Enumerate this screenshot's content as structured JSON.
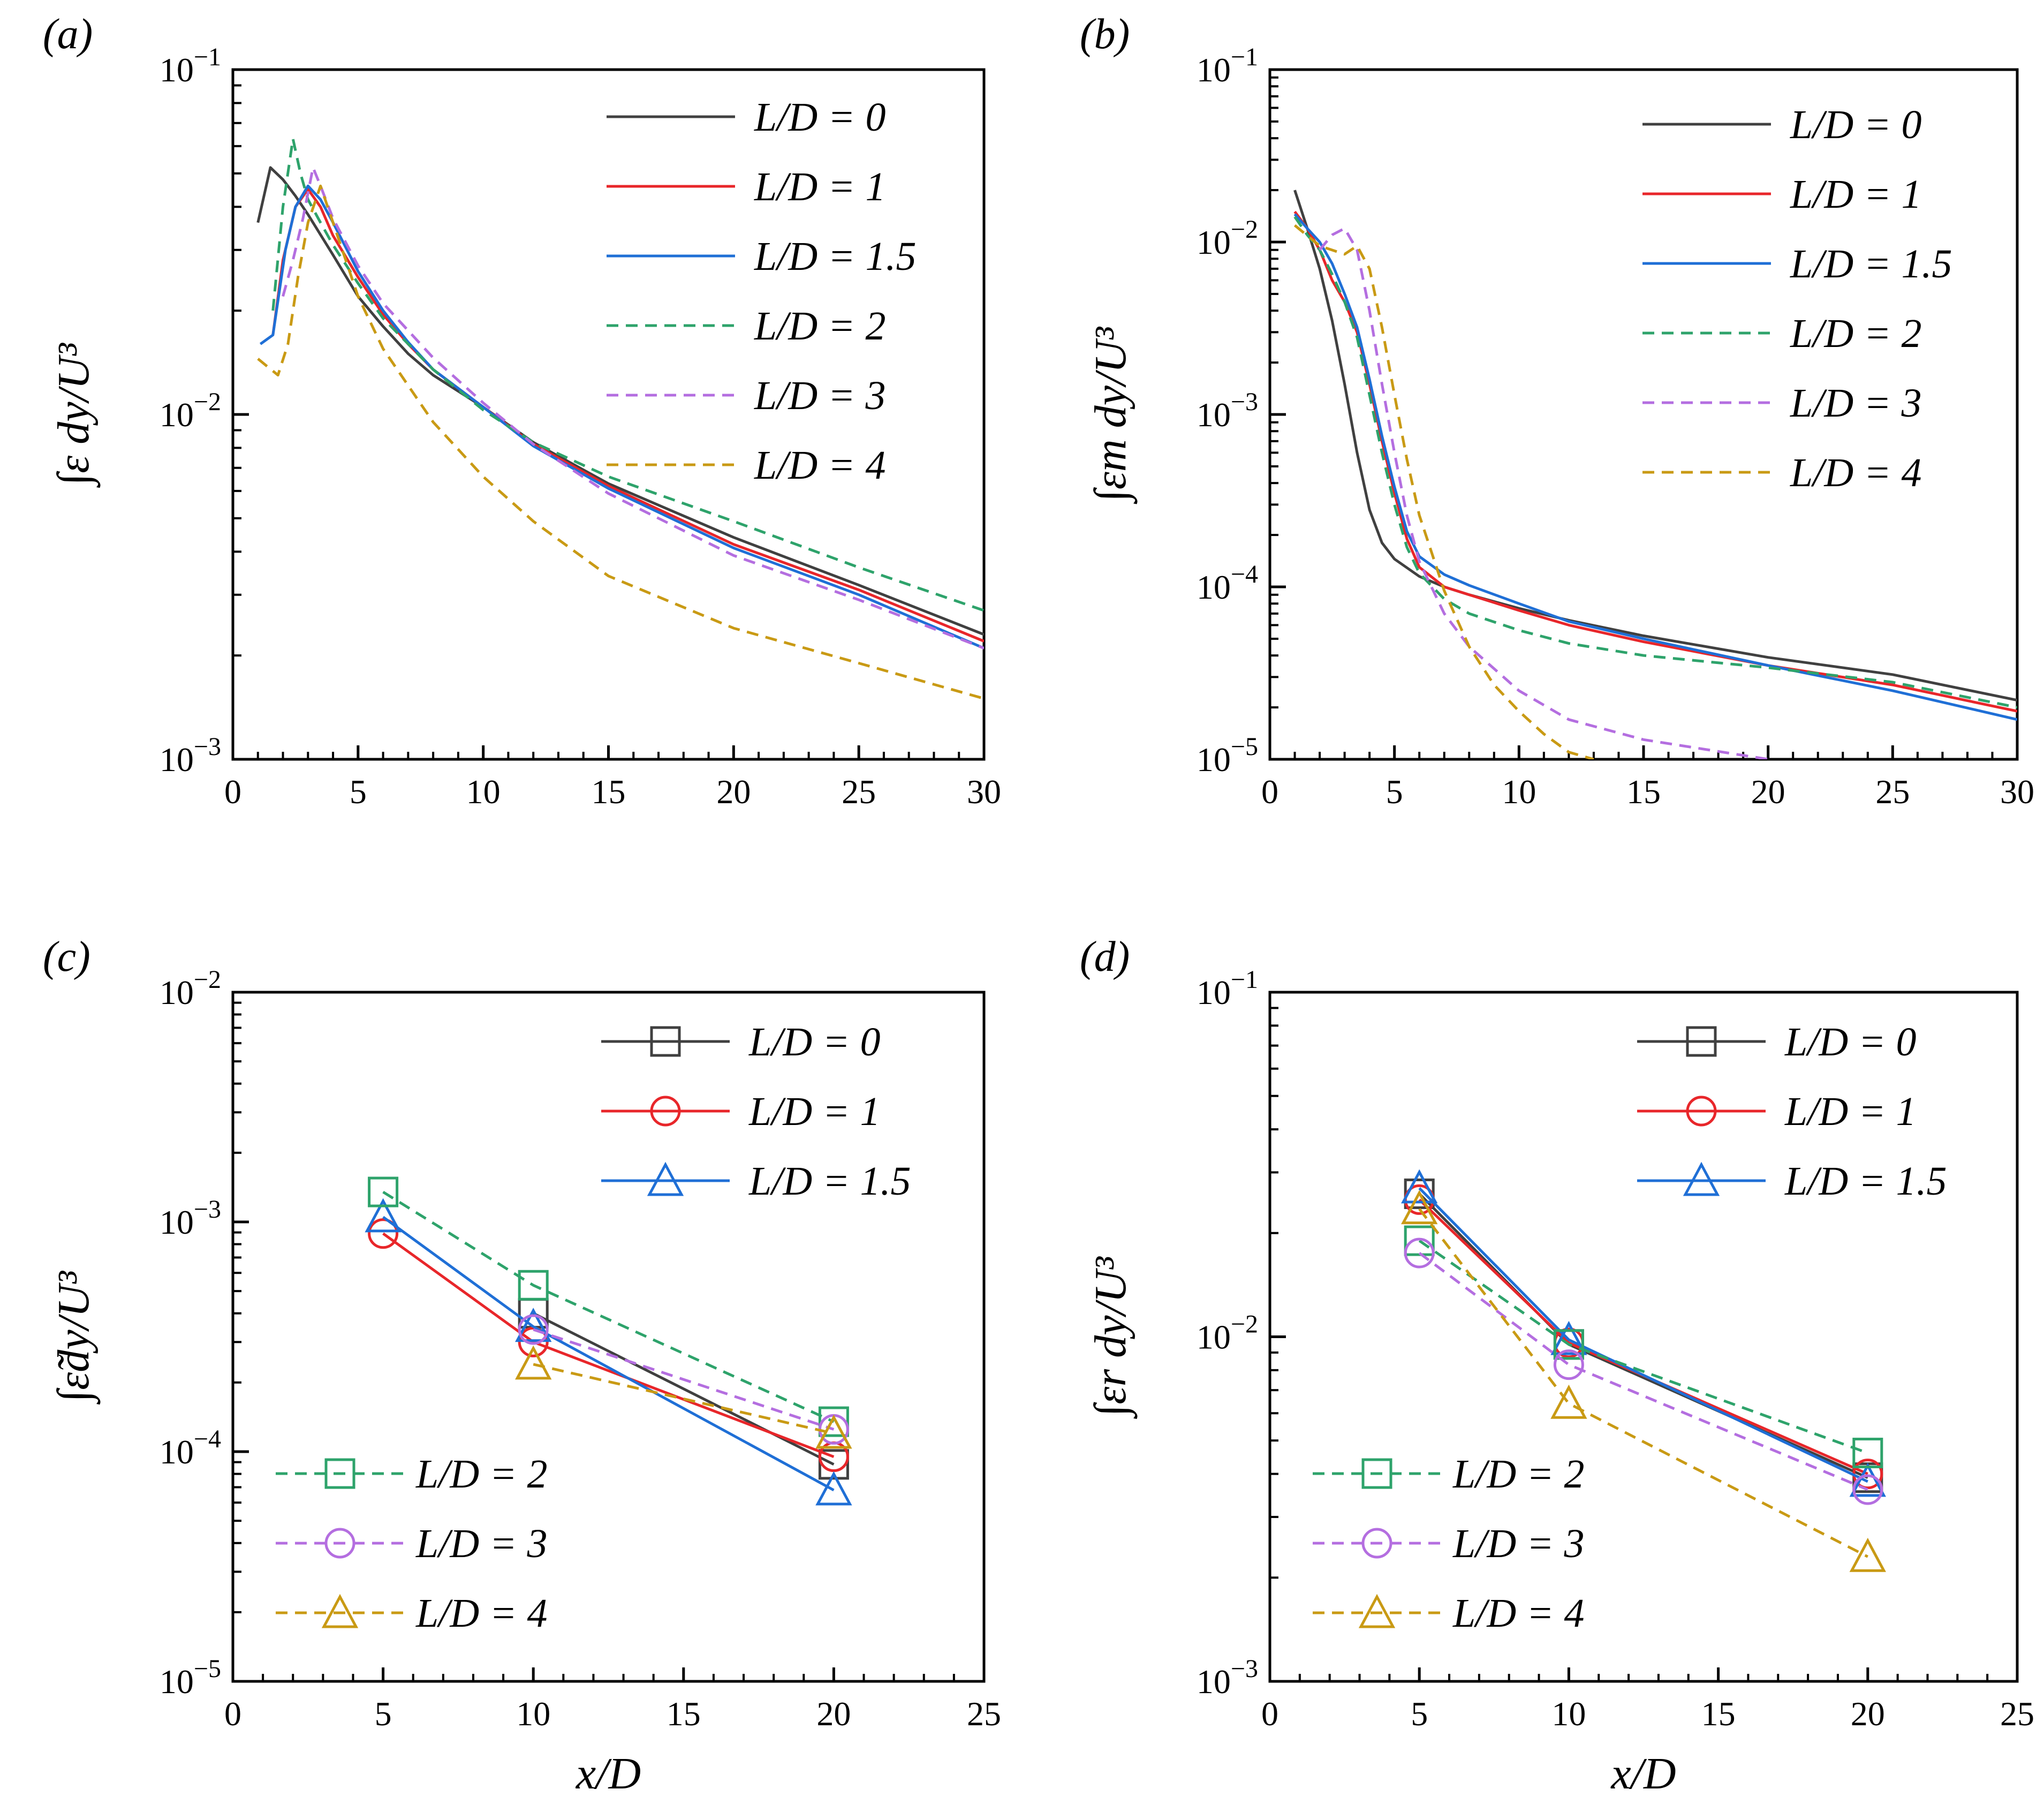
{
  "figure": {
    "series_styles": {
      "L/D = 0": {
        "color": "#404040",
        "dash": "solid",
        "marker": "square"
      },
      "L/D = 1": {
        "color": "#e8262a",
        "dash": "solid",
        "marker": "circle"
      },
      "L/D = 1.5": {
        "color": "#1f6fd6",
        "dash": "solid",
        "marker": "triangle"
      },
      "L/D = 2": {
        "color": "#2ea36b",
        "dash": "dashed",
        "marker": "square"
      },
      "L/D = 3": {
        "color": "#b46ee0",
        "dash": "dashed",
        "marker": "circle"
      },
      "L/D = 4": {
        "color": "#c99a14",
        "dash": "dashed",
        "marker": "triangle"
      }
    }
  },
  "chart_data": [
    {
      "panel_label": "(a)",
      "type": "line",
      "ylabel": "∫ε dy/U³",
      "xlabel": "",
      "xlim": [
        0,
        30
      ],
      "ylim": [
        0.001,
        0.1
      ],
      "yscale": "log",
      "x_ticks": [
        "0",
        "5",
        "10",
        "15",
        "20",
        "25",
        "30"
      ],
      "y_ticks": [
        {
          "base": "10",
          "exp": "−3",
          "value": 0.001
        },
        {
          "base": "10",
          "exp": "−2",
          "value": 0.01
        },
        {
          "base": "10",
          "exp": "−1",
          "value": 0.1
        }
      ],
      "legend_position": "top-right",
      "series": [
        {
          "name": "L/D = 0",
          "x": [
            1,
            1.5,
            2,
            2.5,
            3,
            4,
            5,
            6,
            7,
            8,
            10,
            12,
            15,
            20,
            25,
            30
          ],
          "y": [
            0.036,
            0.052,
            0.048,
            0.043,
            0.038,
            0.029,
            0.022,
            0.018,
            0.015,
            0.013,
            0.0105,
            0.0083,
            0.0063,
            0.0044,
            0.0032,
            0.0023
          ]
        },
        {
          "name": "L/D = 1",
          "x": [
            1.6,
            2,
            2.5,
            3,
            3.5,
            4,
            5,
            6,
            7,
            8,
            10,
            12,
            15,
            20,
            25,
            30
          ],
          "y": [
            0.017,
            0.028,
            0.04,
            0.045,
            0.04,
            0.033,
            0.025,
            0.0195,
            0.016,
            0.0135,
            0.0105,
            0.0082,
            0.0062,
            0.0042,
            0.0031,
            0.0022
          ]
        },
        {
          "name": "L/D = 1.5",
          "x": [
            1.1,
            1.6,
            2.1,
            2.5,
            3,
            3.5,
            4,
            5,
            6,
            7,
            8,
            10,
            12,
            15,
            20,
            25,
            30
          ],
          "y": [
            0.016,
            0.017,
            0.03,
            0.04,
            0.046,
            0.042,
            0.036,
            0.026,
            0.02,
            0.0162,
            0.0135,
            0.0105,
            0.0081,
            0.0061,
            0.0041,
            0.003,
            0.0021
          ]
        },
        {
          "name": "L/D = 2",
          "x": [
            1.6,
            2,
            2.4,
            2.7,
            3,
            3.5,
            4,
            5,
            6,
            8,
            10,
            12,
            15,
            20,
            25,
            30
          ],
          "y": [
            0.02,
            0.04,
            0.063,
            0.05,
            0.042,
            0.036,
            0.031,
            0.024,
            0.019,
            0.0135,
            0.0103,
            0.0083,
            0.0066,
            0.0049,
            0.0036,
            0.0027
          ]
        },
        {
          "name": "L/D = 3",
          "x": [
            2,
            2.4,
            2.8,
            3.2,
            3.5,
            4,
            5,
            6,
            8,
            10,
            12,
            15,
            20,
            25,
            30
          ],
          "y": [
            0.022,
            0.028,
            0.037,
            0.052,
            0.046,
            0.037,
            0.027,
            0.021,
            0.0146,
            0.0108,
            0.0082,
            0.0059,
            0.0039,
            0.0029,
            0.0021
          ]
        },
        {
          "name": "L/D = 4",
          "x": [
            1,
            1.8,
            2.2,
            2.6,
            3,
            3.5,
            4,
            5,
            6,
            8,
            10,
            12,
            15,
            20,
            25,
            30
          ],
          "y": [
            0.0145,
            0.013,
            0.016,
            0.025,
            0.036,
            0.046,
            0.036,
            0.022,
            0.0155,
            0.0095,
            0.0066,
            0.0049,
            0.0034,
            0.0024,
            0.0019,
            0.0015
          ]
        }
      ]
    },
    {
      "panel_label": "(b)",
      "type": "line",
      "ylabel": "∫εm dy/U³",
      "xlabel": "",
      "xlim": [
        0,
        30
      ],
      "ylim": [
        1e-05,
        0.1
      ],
      "yscale": "log",
      "x_ticks": [
        "0",
        "5",
        "10",
        "15",
        "20",
        "25",
        "30"
      ],
      "y_ticks": [
        {
          "base": "10",
          "exp": "−5",
          "value": 1e-05
        },
        {
          "base": "10",
          "exp": "−4",
          "value": 0.0001
        },
        {
          "base": "10",
          "exp": "−3",
          "value": 0.001
        },
        {
          "base": "10",
          "exp": "−2",
          "value": 0.01
        },
        {
          "base": "10",
          "exp": "−1",
          "value": 0.1
        }
      ],
      "legend_position": "top-right",
      "series": [
        {
          "name": "L/D = 0",
          "x": [
            1,
            1.5,
            2,
            2.5,
            3,
            3.5,
            4,
            4.5,
            5,
            6,
            7,
            8,
            10,
            12,
            15,
            20,
            25,
            30
          ],
          "y": [
            0.02,
            0.012,
            0.007,
            0.0035,
            0.0015,
            0.0006,
            0.00028,
            0.00018,
            0.000145,
            0.000115,
            0.0001,
            9e-05,
            7.5e-05,
            6.4e-05,
            5.2e-05,
            3.9e-05,
            3.1e-05,
            2.2e-05
          ]
        },
        {
          "name": "L/D = 1",
          "x": [
            1,
            1.5,
            2,
            2.5,
            3,
            3.5,
            4,
            4.5,
            5,
            5.5,
            6,
            7,
            8,
            10,
            12,
            15,
            20,
            25,
            30
          ],
          "y": [
            0.015,
            0.012,
            0.009,
            0.006,
            0.0045,
            0.003,
            0.0015,
            0.0007,
            0.00035,
            0.00019,
            0.00013,
            0.0001,
            9e-05,
            7.3e-05,
            6e-05,
            4.8e-05,
            3.5e-05,
            2.7e-05,
            1.9e-05
          ]
        },
        {
          "name": "L/D = 1.5",
          "x": [
            1,
            1.5,
            2,
            2.5,
            3,
            3.5,
            4,
            4.5,
            5,
            5.5,
            6,
            7,
            8,
            10,
            12,
            15,
            20,
            25,
            30
          ],
          "y": [
            0.0145,
            0.012,
            0.01,
            0.0075,
            0.005,
            0.0032,
            0.0016,
            0.00075,
            0.00038,
            0.00021,
            0.00015,
            0.000118,
            0.000102,
            8e-05,
            6.3e-05,
            5e-05,
            3.5e-05,
            2.5e-05,
            1.7e-05
          ]
        },
        {
          "name": "L/D = 2",
          "x": [
            1,
            1.5,
            2,
            2.5,
            3,
            3.5,
            4,
            4.5,
            5,
            5.5,
            6,
            7,
            8,
            10,
            12,
            15,
            20,
            25,
            30
          ],
          "y": [
            0.014,
            0.011,
            0.009,
            0.0065,
            0.0045,
            0.0028,
            0.0013,
            0.0006,
            0.0003,
            0.00017,
            0.00012,
            8.5e-05,
            7e-05,
            5.6e-05,
            4.7e-05,
            4e-05,
            3.4e-05,
            2.8e-05,
            2e-05
          ]
        },
        {
          "name": "L/D = 3",
          "x": [
            2,
            2.5,
            3,
            3.5,
            4,
            4.5,
            5,
            5.5,
            6,
            7,
            8,
            10,
            12,
            15,
            20
          ],
          "y": [
            0.009,
            0.011,
            0.012,
            0.009,
            0.004,
            0.0015,
            0.0006,
            0.00026,
            0.00014,
            7e-05,
            4.5e-05,
            2.5e-05,
            1.7e-05,
            1.3e-05,
            1e-05
          ]
        },
        {
          "name": "L/D = 4",
          "x": [
            1,
            2,
            3,
            3.5,
            4,
            4.5,
            5,
            5.5,
            6,
            7,
            8,
            9,
            10,
            11,
            12,
            13
          ],
          "y": [
            0.0125,
            0.0095,
            0.0085,
            0.0095,
            0.007,
            0.0032,
            0.0013,
            0.00055,
            0.00026,
            9.5e-05,
            4.5e-05,
            2.7e-05,
            1.9e-05,
            1.4e-05,
            1.1e-05,
            1e-05
          ]
        }
      ]
    },
    {
      "panel_label": "(c)",
      "type": "line",
      "ylabel": "∫ε̃dy/U³",
      "xlabel": "x/D",
      "xlim": [
        0,
        25
      ],
      "ylim": [
        1e-05,
        0.01
      ],
      "yscale": "log",
      "x_ticks": [
        "0",
        "5",
        "10",
        "15",
        "20",
        "25"
      ],
      "y_ticks": [
        {
          "base": "10",
          "exp": "−5",
          "value": 1e-05
        },
        {
          "base": "10",
          "exp": "−4",
          "value": 0.0001
        },
        {
          "base": "10",
          "exp": "−3",
          "value": 0.001
        },
        {
          "base": "10",
          "exp": "−2",
          "value": 0.01
        }
      ],
      "legend_position": "top-right (L/D = 0, 1, 1.5); bottom-left (L/D = 2, 3, 4)",
      "series": [
        {
          "name": "L/D = 0",
          "x": [
            10,
            20
          ],
          "y": [
            0.0004,
            8.8e-05
          ]
        },
        {
          "name": "L/D = 1",
          "x": [
            5,
            10,
            20
          ],
          "y": [
            0.00089,
            0.0003,
            9.5e-05
          ]
        },
        {
          "name": "L/D = 1.5",
          "x": [
            5,
            10,
            20
          ],
          "y": [
            0.00105,
            0.00035,
            6.8e-05
          ]
        },
        {
          "name": "L/D = 2",
          "x": [
            5,
            10,
            20
          ],
          "y": [
            0.00135,
            0.00053,
            0.000135
          ]
        },
        {
          "name": "L/D = 3",
          "x": [
            10,
            20
          ],
          "y": [
            0.00034,
            0.000125
          ]
        },
        {
          "name": "L/D = 4",
          "x": [
            10,
            20
          ],
          "y": [
            0.00024,
            0.00012
          ]
        }
      ]
    },
    {
      "panel_label": "(d)",
      "type": "line",
      "ylabel": "∫εr dy/U³",
      "xlabel": "x/D",
      "xlim": [
        0,
        25
      ],
      "ylim": [
        0.001,
        0.1
      ],
      "yscale": "log",
      "x_ticks": [
        "0",
        "5",
        "10",
        "15",
        "20",
        "25"
      ],
      "y_ticks": [
        {
          "base": "10",
          "exp": "−3",
          "value": 0.001
        },
        {
          "base": "10",
          "exp": "−2",
          "value": 0.01
        },
        {
          "base": "10",
          "exp": "−1",
          "value": 0.1
        }
      ],
      "legend_position": "top-right (L/D = 0, 1, 1.5); bottom-left (L/D = 2, 3, 4)",
      "series": [
        {
          "name": "L/D = 0",
          "x": [
            5,
            10,
            20
          ],
          "y": [
            0.026,
            0.0095,
            0.0039
          ]
        },
        {
          "name": "L/D = 1",
          "x": [
            5,
            10,
            20
          ],
          "y": [
            0.025,
            0.0096,
            0.004
          ]
        },
        {
          "name": "L/D = 1.5",
          "x": [
            5,
            10,
            20
          ],
          "y": [
            0.027,
            0.0098,
            0.0038
          ]
        },
        {
          "name": "L/D = 2",
          "x": [
            5,
            10,
            20
          ],
          "y": [
            0.019,
            0.0095,
            0.0046
          ]
        },
        {
          "name": "L/D = 3",
          "x": [
            5,
            10,
            20
          ],
          "y": [
            0.0175,
            0.0083,
            0.0036
          ]
        },
        {
          "name": "L/D = 4",
          "x": [
            5,
            10,
            20
          ],
          "y": [
            0.0235,
            0.0064,
            0.0023
          ]
        }
      ]
    }
  ]
}
